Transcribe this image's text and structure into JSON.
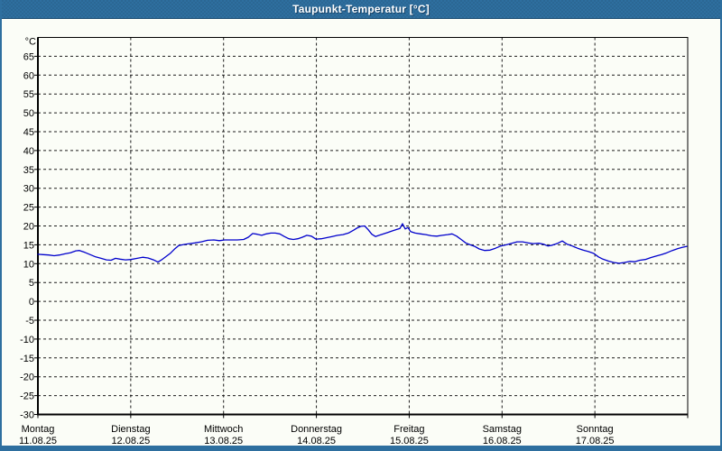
{
  "window": {
    "title": "Taupunkt-Temperatur [°C]"
  },
  "colors": {
    "titlebar": "#2e6f9f",
    "titlebar_edge": "#1c4c72",
    "window_border": "#2e6f9f",
    "content_bg": "#fbfdf7",
    "grid": "#1c1c1c",
    "axis": "#000000",
    "label": "#000000",
    "line": "#0000cc"
  },
  "chart_data": {
    "type": "line",
    "title": "Taupunkt-Temperatur [°C]",
    "y_unit_label": "°C",
    "ylim": [
      -30,
      70
    ],
    "ytick_step": 5,
    "ytick_labels": [
      65,
      60,
      55,
      50,
      45,
      40,
      35,
      30,
      25,
      20,
      15,
      10,
      5,
      0,
      -5,
      -10,
      -15,
      -20,
      -25,
      -30
    ],
    "grid_style": "dashed",
    "legend": "none",
    "x_span_days": 7,
    "x_categories": [
      {
        "name": "Montag",
        "date": "11.08.25"
      },
      {
        "name": "Dienstag",
        "date": "12.08.25"
      },
      {
        "name": "Mittwoch",
        "date": "13.08.25"
      },
      {
        "name": "Donnerstag",
        "date": "14.08.25"
      },
      {
        "name": "Freitag",
        "date": "15.08.25"
      },
      {
        "name": "Samstag",
        "date": "16.08.25"
      },
      {
        "name": "Sonntag",
        "date": "17.08.25"
      }
    ],
    "series": [
      {
        "name": "Taupunkt-Temperatur",
        "color": "#0000cc",
        "points_day_value": [
          [
            0.0,
            12.5
          ],
          [
            0.058,
            12.4
          ],
          [
            0.117,
            12.3
          ],
          [
            0.175,
            12.1
          ],
          [
            0.233,
            12.3
          ],
          [
            0.292,
            12.6
          ],
          [
            0.35,
            12.9
          ],
          [
            0.408,
            13.4
          ],
          [
            0.447,
            13.5
          ],
          [
            0.506,
            13.0
          ],
          [
            0.564,
            12.4
          ],
          [
            0.622,
            11.8
          ],
          [
            0.681,
            11.4
          ],
          [
            0.739,
            11.0
          ],
          [
            0.788,
            10.9
          ],
          [
            0.836,
            11.4
          ],
          [
            0.885,
            11.2
          ],
          [
            0.943,
            11.0
          ],
          [
            1.001,
            11.1
          ],
          [
            1.069,
            11.4
          ],
          [
            1.128,
            11.7
          ],
          [
            1.186,
            11.5
          ],
          [
            1.245,
            11.0
          ],
          [
            1.293,
            10.4
          ],
          [
            1.332,
            11.0
          ],
          [
            1.381,
            11.9
          ],
          [
            1.429,
            12.8
          ],
          [
            1.478,
            14.0
          ],
          [
            1.517,
            14.8
          ],
          [
            1.575,
            15.1
          ],
          [
            1.633,
            15.3
          ],
          [
            1.692,
            15.5
          ],
          [
            1.76,
            15.8
          ],
          [
            1.828,
            16.2
          ],
          [
            1.896,
            16.3
          ],
          [
            1.954,
            16.1
          ],
          [
            2.013,
            16.3
          ],
          [
            2.081,
            16.3
          ],
          [
            2.149,
            16.3
          ],
          [
            2.217,
            16.4
          ],
          [
            2.266,
            17.0
          ],
          [
            2.314,
            18.0
          ],
          [
            2.363,
            17.8
          ],
          [
            2.411,
            17.5
          ],
          [
            2.46,
            17.9
          ],
          [
            2.509,
            18.1
          ],
          [
            2.557,
            18.1
          ],
          [
            2.606,
            17.9
          ],
          [
            2.654,
            17.2
          ],
          [
            2.703,
            16.6
          ],
          [
            2.751,
            16.4
          ],
          [
            2.8,
            16.6
          ],
          [
            2.849,
            17.0
          ],
          [
            2.897,
            17.5
          ],
          [
            2.946,
            17.3
          ],
          [
            2.995,
            16.5
          ],
          [
            3.053,
            16.6
          ],
          [
            3.111,
            16.9
          ],
          [
            3.17,
            17.2
          ],
          [
            3.228,
            17.5
          ],
          [
            3.286,
            17.7
          ],
          [
            3.344,
            18.1
          ],
          [
            3.403,
            18.9
          ],
          [
            3.442,
            19.5
          ],
          [
            3.481,
            19.9
          ],
          [
            3.52,
            20.0
          ],
          [
            3.558,
            19.0
          ],
          [
            3.597,
            17.8
          ],
          [
            3.636,
            17.2
          ],
          [
            3.675,
            17.5
          ],
          [
            3.724,
            17.9
          ],
          [
            3.772,
            18.3
          ],
          [
            3.821,
            18.7
          ],
          [
            3.869,
            19.1
          ],
          [
            3.899,
            19.3
          ],
          [
            3.928,
            20.6
          ],
          [
            3.957,
            19.2
          ],
          [
            3.986,
            19.6
          ],
          [
            4.015,
            18.5
          ],
          [
            4.064,
            18.1
          ],
          [
            4.122,
            17.9
          ],
          [
            4.18,
            17.7
          ],
          [
            4.239,
            17.4
          ],
          [
            4.297,
            17.3
          ],
          [
            4.355,
            17.5
          ],
          [
            4.414,
            17.7
          ],
          [
            4.462,
            17.9
          ],
          [
            4.511,
            17.3
          ],
          [
            4.56,
            16.4
          ],
          [
            4.608,
            15.5
          ],
          [
            4.657,
            15.0
          ],
          [
            4.705,
            14.6
          ],
          [
            4.754,
            13.9
          ],
          [
            4.813,
            13.5
          ],
          [
            4.871,
            13.6
          ],
          [
            4.929,
            14.1
          ],
          [
            4.987,
            14.7
          ],
          [
            5.046,
            15.0
          ],
          [
            5.104,
            15.4
          ],
          [
            5.162,
            15.8
          ],
          [
            5.221,
            15.8
          ],
          [
            5.279,
            15.5
          ],
          [
            5.337,
            15.3
          ],
          [
            5.396,
            15.4
          ],
          [
            5.444,
            15.2
          ],
          [
            5.493,
            14.7
          ],
          [
            5.542,
            14.9
          ],
          [
            5.6,
            15.4
          ],
          [
            5.649,
            16.0
          ],
          [
            5.698,
            15.2
          ],
          [
            5.756,
            14.7
          ],
          [
            5.814,
            14.1
          ],
          [
            5.872,
            13.6
          ],
          [
            5.931,
            13.2
          ],
          [
            5.989,
            12.7
          ],
          [
            6.038,
            11.8
          ],
          [
            6.086,
            11.2
          ],
          [
            6.144,
            10.7
          ],
          [
            6.203,
            10.3
          ],
          [
            6.261,
            10.1
          ],
          [
            6.319,
            10.3
          ],
          [
            6.378,
            10.6
          ],
          [
            6.426,
            10.5
          ],
          [
            6.485,
            10.9
          ],
          [
            6.543,
            11.1
          ],
          [
            6.601,
            11.6
          ],
          [
            6.66,
            12.0
          ],
          [
            6.718,
            12.4
          ],
          [
            6.776,
            12.9
          ],
          [
            6.835,
            13.5
          ],
          [
            6.893,
            14.0
          ],
          [
            6.941,
            14.3
          ],
          [
            6.99,
            14.6
          ]
        ]
      }
    ]
  }
}
